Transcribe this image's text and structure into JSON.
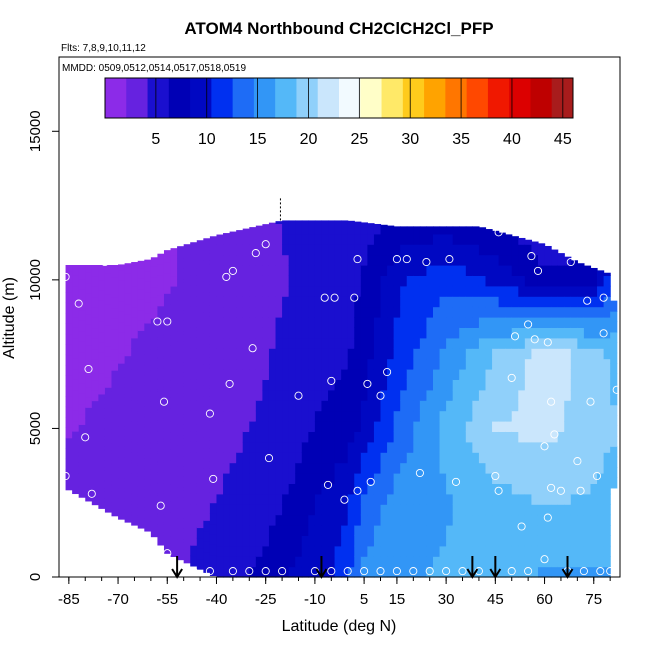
{
  "chart_data": {
    "type": "heatmap",
    "title": "ATOM4 Northbound CH2ClCH2Cl_PFP",
    "subtitle_flights": "Flts: 7,8,9,10,11,12",
    "subtitle_dates": "MMDD: 0509,0512,0514,0517,0518,0519",
    "xlabel": "Latitude (deg N)",
    "ylabel": "Altitude (m)",
    "xlim": [
      -88,
      83
    ],
    "ylim": [
      0,
      17500
    ],
    "x_ticks": [
      -85,
      -70,
      -55,
      -40,
      -25,
      -10,
      5,
      15,
      30,
      45,
      60,
      75
    ],
    "y_ticks": [
      0,
      5000,
      10000,
      15000
    ],
    "colorbar": {
      "range": [
        0,
        46
      ],
      "ticks": [
        5,
        10,
        15,
        20,
        25,
        30,
        35,
        40,
        45
      ],
      "colors": [
        "#8c2be8",
        "#6622e0",
        "#1a0fcf",
        "#0000b5",
        "#0008c2",
        "#0030f0",
        "#1e6cf6",
        "#3296f6",
        "#54b8f8",
        "#90d0fa",
        "#cae6fc",
        "#f2faff",
        "#fffec8",
        "#ffe968",
        "#ffcb1c",
        "#ffa300",
        "#ff7600",
        "#ff4800",
        "#f01800",
        "#dc0000",
        "#be0000",
        "#a81c1c"
      ]
    },
    "field": {
      "lat": [
        -85,
        -70,
        -55,
        -40,
        -25,
        -15,
        -10,
        -5,
        0,
        5,
        15,
        30,
        45,
        60,
        75,
        80
      ],
      "alt": [
        0,
        2500,
        5000,
        7500,
        10000,
        12000
      ],
      "values": [
        [
          3.2,
          3.4,
          3.8,
          5.0,
          7.0,
          9.0,
          10.0,
          10.5,
          12.0,
          15.5,
          16.5,
          17.0,
          17.0,
          16.5,
          16.5,
          16.5
        ],
        [
          2.5,
          3.0,
          3.4,
          4.2,
          5.5,
          7.0,
          8.5,
          9.0,
          10.0,
          13.0,
          15.5,
          16.5,
          18.0,
          19.0,
          18.5,
          18.0
        ],
        [
          2.0,
          2.5,
          3.0,
          3.5,
          4.5,
          5.5,
          6.5,
          7.0,
          7.5,
          9.0,
          13.0,
          17.5,
          21.0,
          21.5,
          20.0,
          19.0
        ],
        [
          1.5,
          2.0,
          2.5,
          3.0,
          4.0,
          5.0,
          5.0,
          5.5,
          6.0,
          7.5,
          11.0,
          15.0,
          19.0,
          22.0,
          20.0,
          18.5
        ],
        [
          1.0,
          1.5,
          2.0,
          2.5,
          3.5,
          4.5,
          4.5,
          5.0,
          5.5,
          6.5,
          10.0,
          12.0,
          10.0,
          7.0,
          8.0,
          12.0
        ],
        [
          1.0,
          1.5,
          2.0,
          2.5,
          4.0,
          4.5,
          4.8,
          5.0,
          5.0,
          5.5,
          6.5,
          7.0,
          6.0,
          4.0,
          3.0,
          3.0
        ]
      ]
    },
    "extent": {
      "lat": [
        -86,
        -70,
        -60,
        -55,
        -40,
        -20,
        0,
        15,
        40,
        60,
        70,
        75,
        80,
        81
      ],
      "top": [
        10500,
        10500,
        10700,
        11000,
        11500,
        12000,
        12000,
        11800,
        11800,
        11200,
        10600,
        10400,
        10200,
        9300
      ],
      "bottom": [
        3000,
        2000,
        1500,
        800,
        0,
        0,
        0,
        0,
        0,
        0,
        0,
        0,
        0,
        3000
      ]
    },
    "profile_arrows_lat": [
      -52,
      -8,
      38,
      45,
      67
    ],
    "points": [
      {
        "x": -86,
        "y": 10100
      },
      {
        "x": -82,
        "y": 9200
      },
      {
        "x": -79,
        "y": 7000
      },
      {
        "x": -80,
        "y": 4700
      },
      {
        "x": -86,
        "y": 3400
      },
      {
        "x": -78,
        "y": 2800
      },
      {
        "x": -79,
        "y": 1300
      },
      {
        "x": -74,
        "y": 10600
      },
      {
        "x": -58,
        "y": 8600
      },
      {
        "x": -55,
        "y": 8600
      },
      {
        "x": -56,
        "y": 5900
      },
      {
        "x": -57,
        "y": 2400
      },
      {
        "x": -55,
        "y": 800
      },
      {
        "x": -52,
        "y": 200
      },
      {
        "x": -47,
        "y": 200
      },
      {
        "x": -42,
        "y": 200
      },
      {
        "x": -41,
        "y": 3300
      },
      {
        "x": -42,
        "y": 5500
      },
      {
        "x": -36,
        "y": 6500
      },
      {
        "x": -37,
        "y": 10100
      },
      {
        "x": -35,
        "y": 10300
      },
      {
        "x": -28,
        "y": 10900
      },
      {
        "x": -29,
        "y": 7700
      },
      {
        "x": -24,
        "y": 4000
      },
      {
        "x": -25,
        "y": 11200
      },
      {
        "x": -15,
        "y": 6100
      },
      {
        "x": -7,
        "y": 9400
      },
      {
        "x": -4,
        "y": 9400
      },
      {
        "x": -5,
        "y": 6600
      },
      {
        "x": -6,
        "y": 3100
      },
      {
        "x": -1,
        "y": 2600
      },
      {
        "x": 2,
        "y": 9400
      },
      {
        "x": 3,
        "y": 10700
      },
      {
        "x": 3,
        "y": 2900
      },
      {
        "x": 6,
        "y": 6500
      },
      {
        "x": 7,
        "y": 3200
      },
      {
        "x": 10,
        "y": 6100
      },
      {
        "x": 12,
        "y": 6900
      },
      {
        "x": 15,
        "y": 10700
      },
      {
        "x": 18,
        "y": 10700
      },
      {
        "x": 22,
        "y": 3500
      },
      {
        "x": 24,
        "y": 10600
      },
      {
        "x": 31,
        "y": 10700
      },
      {
        "x": 33,
        "y": 3200
      },
      {
        "x": 45,
        "y": 3400
      },
      {
        "x": 46,
        "y": 2900
      },
      {
        "x": 46,
        "y": 11600
      },
      {
        "x": 50,
        "y": 6700
      },
      {
        "x": 51,
        "y": 8100
      },
      {
        "x": 53,
        "y": 1700
      },
      {
        "x": 55,
        "y": 8500
      },
      {
        "x": 56,
        "y": 10800
      },
      {
        "x": 57,
        "y": 8000
      },
      {
        "x": 60,
        "y": 4400
      },
      {
        "x": 61,
        "y": 7900
      },
      {
        "x": 62,
        "y": 5900
      },
      {
        "x": 62,
        "y": 3000
      },
      {
        "x": 61,
        "y": 2000
      },
      {
        "x": 63,
        "y": 4800
      },
      {
        "x": 65,
        "y": 2900
      },
      {
        "x": 68,
        "y": 10600
      },
      {
        "x": 70,
        "y": 3900
      },
      {
        "x": 71,
        "y": 2900
      },
      {
        "x": 73,
        "y": 9300
      },
      {
        "x": 74,
        "y": 5900
      },
      {
        "x": 76,
        "y": 3400
      },
      {
        "x": 77,
        "y": 10700
      },
      {
        "x": 78,
        "y": 9400
      },
      {
        "x": 78,
        "y": 8200
      },
      {
        "x": 82,
        "y": 6300
      },
      {
        "x": 58,
        "y": 10300
      },
      {
        "x": 60,
        "y": 600
      },
      {
        "x": 67,
        "y": 200
      },
      {
        "x": 72,
        "y": 200
      },
      {
        "x": 77,
        "y": 200
      },
      {
        "x": 80,
        "y": 200
      },
      {
        "x": 10,
        "y": 200
      },
      {
        "x": 15,
        "y": 200
      },
      {
        "x": 20,
        "y": 200
      },
      {
        "x": 25,
        "y": 200
      },
      {
        "x": 30,
        "y": 200
      },
      {
        "x": 35,
        "y": 200
      },
      {
        "x": 40,
        "y": 200
      },
      {
        "x": 50,
        "y": 200
      },
      {
        "x": 55,
        "y": 200
      },
      {
        "x": -30,
        "y": 200
      },
      {
        "x": -25,
        "y": 200
      },
      {
        "x": -35,
        "y": 200
      },
      {
        "x": -20,
        "y": 200
      },
      {
        "x": 5,
        "y": 200
      },
      {
        "x": 0,
        "y": 200
      },
      {
        "x": -5,
        "y": 200
      },
      {
        "x": -10,
        "y": 200
      }
    ]
  }
}
